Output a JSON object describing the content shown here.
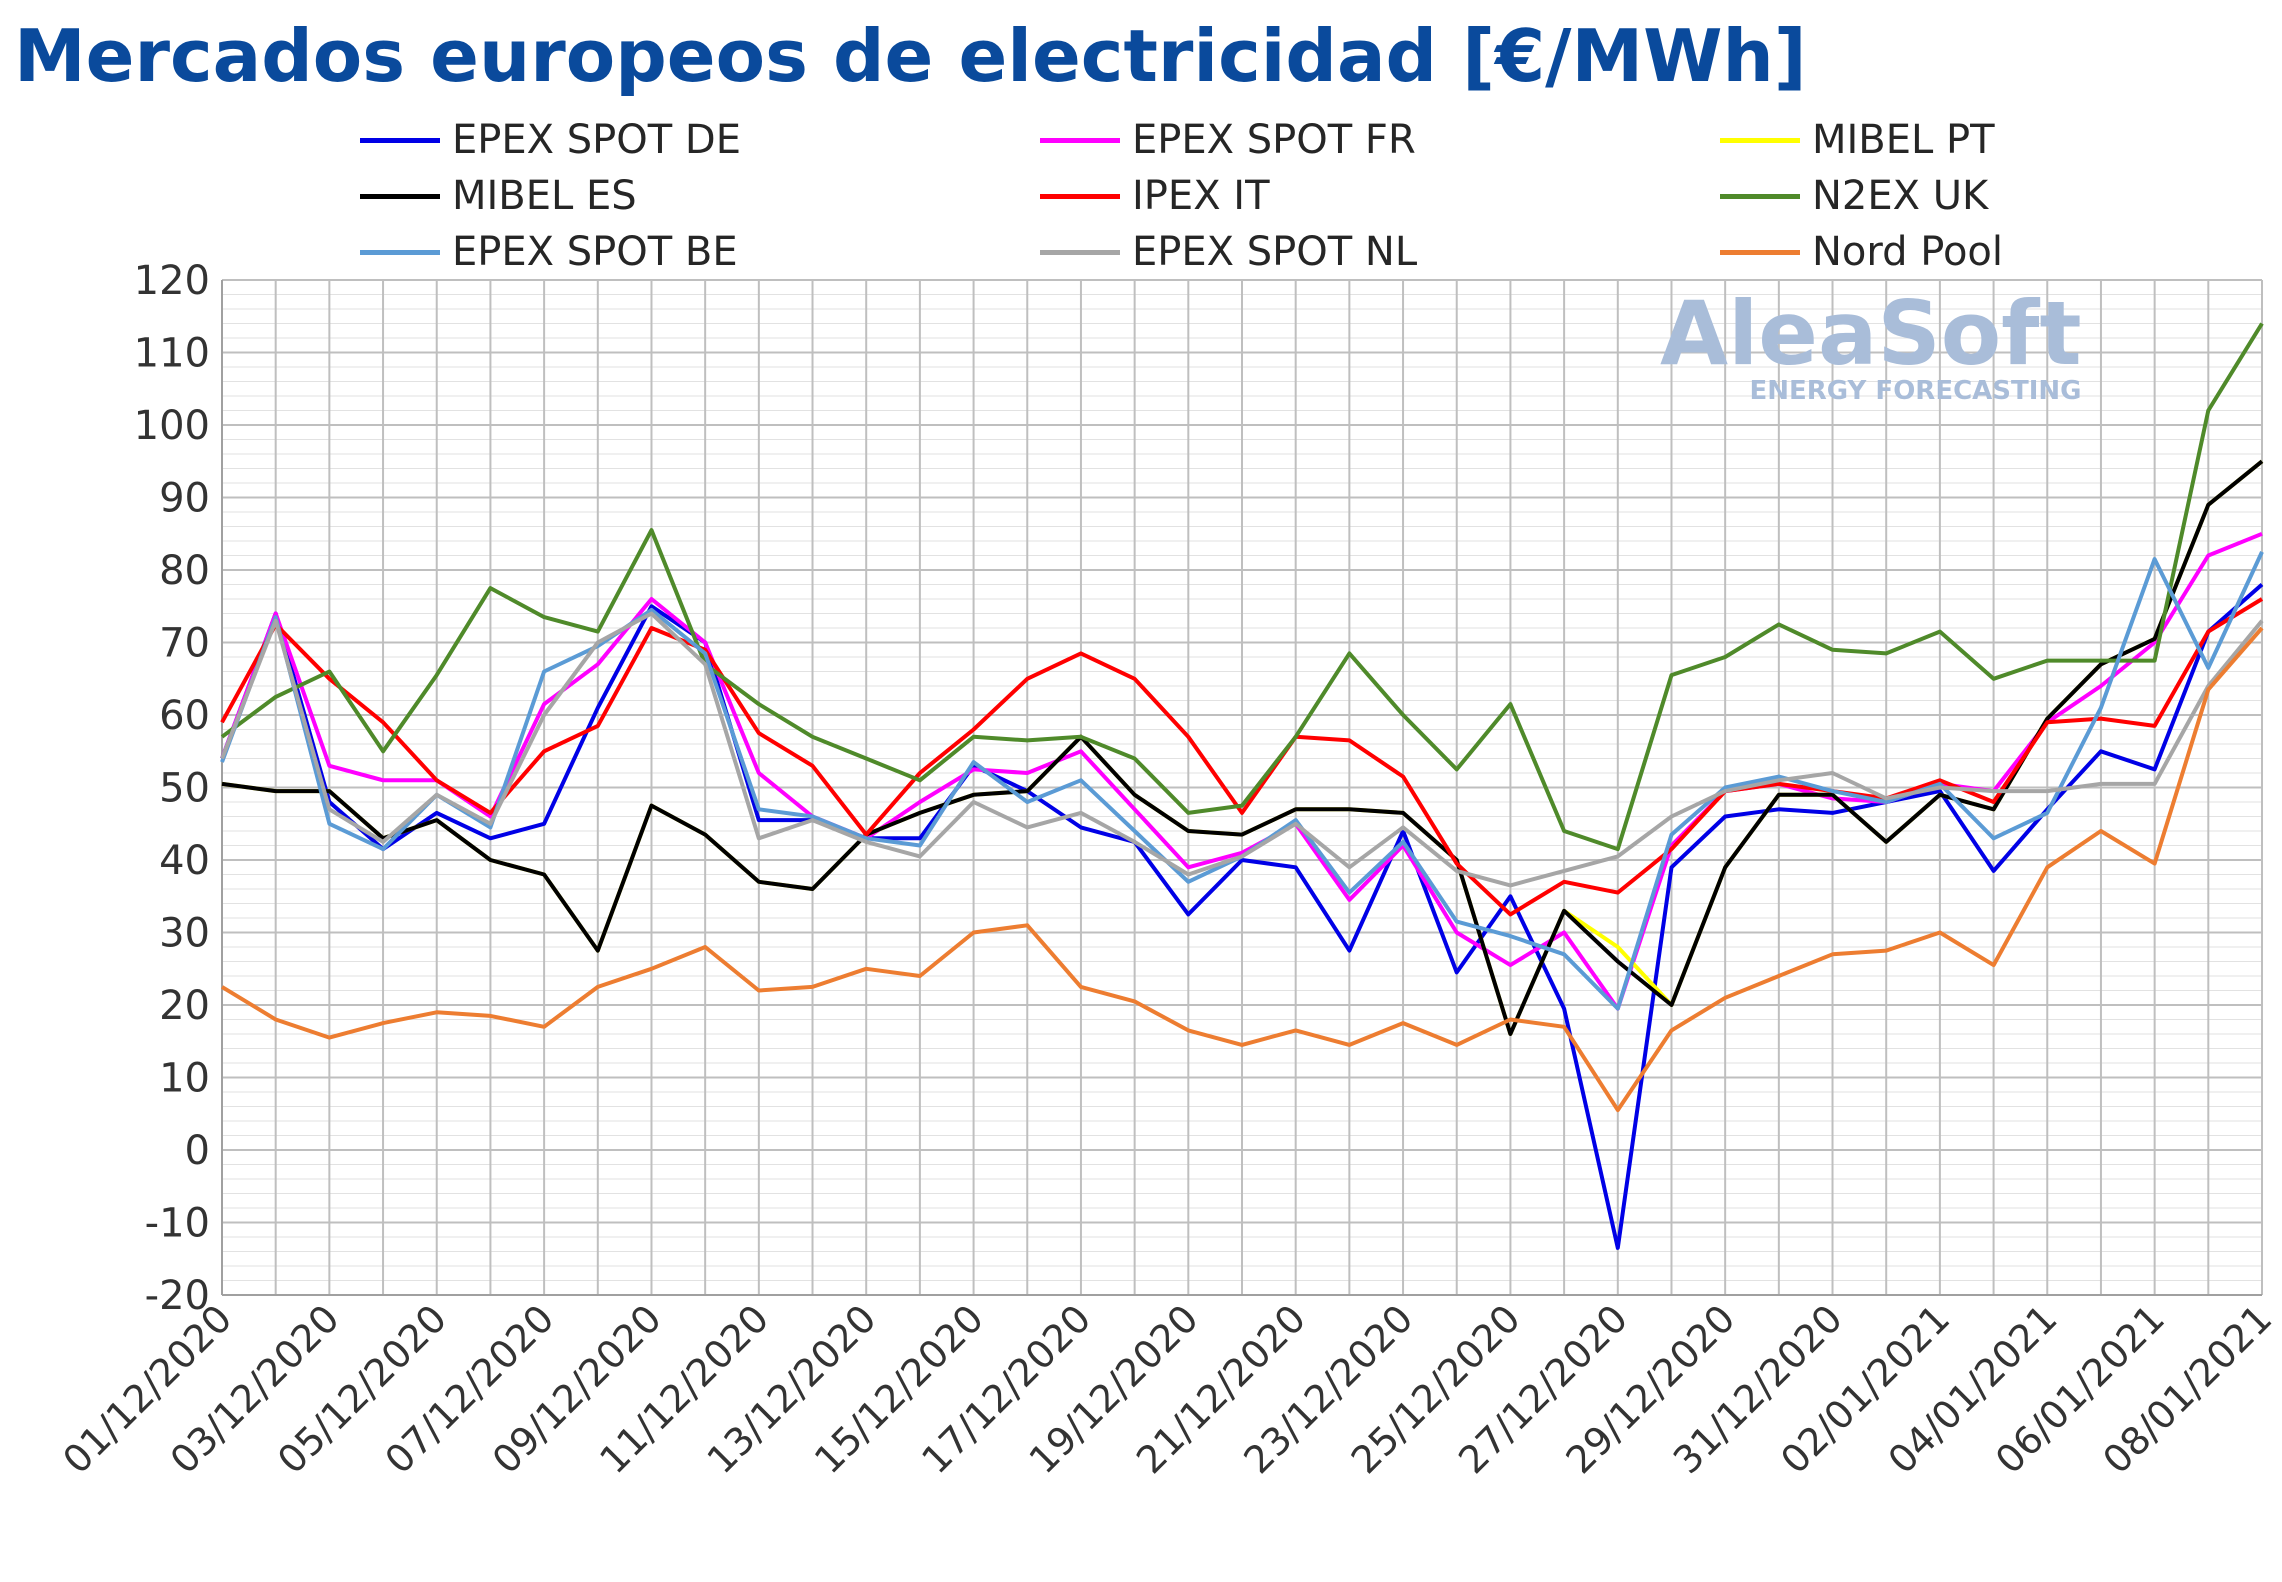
{
  "title": "Mercados europeos de electricidad [€/MWh]",
  "watermark": {
    "name": "AleaSoft",
    "tagline": "ENERGY FORECASTING"
  },
  "chart_data": {
    "type": "line",
    "title": "Mercados europeos de electricidad [€/MWh]",
    "ylabel": "",
    "xlabel": "",
    "ylim": [
      -20,
      120
    ],
    "yticks": [
      120,
      110,
      100,
      90,
      80,
      70,
      60,
      50,
      40,
      30,
      20,
      10,
      0,
      -10,
      -20
    ],
    "grid": true,
    "legend_position": "top",
    "x": [
      "01/12/2020",
      "02/12/2020",
      "03/12/2020",
      "04/12/2020",
      "05/12/2020",
      "06/12/2020",
      "07/12/2020",
      "08/12/2020",
      "09/12/2020",
      "10/12/2020",
      "11/12/2020",
      "12/12/2020",
      "13/12/2020",
      "14/12/2020",
      "15/12/2020",
      "16/12/2020",
      "17/12/2020",
      "18/12/2020",
      "19/12/2020",
      "20/12/2020",
      "21/12/2020",
      "22/12/2020",
      "23/12/2020",
      "24/12/2020",
      "25/12/2020",
      "26/12/2020",
      "27/12/2020",
      "28/12/2020",
      "29/12/2020",
      "30/12/2020",
      "31/12/2020",
      "01/01/2021",
      "02/01/2021",
      "03/01/2021",
      "04/01/2021",
      "05/01/2021",
      "06/01/2021",
      "07/01/2021",
      "08/01/2021"
    ],
    "x_tick_labels": [
      "01/12/2020",
      "03/12/2020",
      "05/12/2020",
      "07/12/2020",
      "09/12/2020",
      "11/12/2020",
      "13/12/2020",
      "15/12/2020",
      "17/12/2020",
      "19/12/2020",
      "21/12/2020",
      "23/12/2020",
      "25/12/2020",
      "27/12/2020",
      "29/12/2020",
      "31/12/2020",
      "02/01/2021",
      "04/01/2021",
      "06/01/2021",
      "08/01/2021"
    ],
    "series": [
      {
        "name": "EPEX SPOT DE",
        "color": "#0000e6",
        "values": [
          54,
          74,
          48,
          41.5,
          46.5,
          43,
          45,
          61,
          75,
          70,
          45.5,
          45.5,
          43,
          43,
          53,
          49.5,
          44.5,
          42.5,
          32.5,
          40,
          39,
          27.5,
          44,
          24.5,
          35,
          19.5,
          -13.5,
          39,
          46,
          47,
          46.5,
          48,
          49.5,
          38.5,
          47,
          55,
          52.5,
          71.5,
          78
        ]
      },
      {
        "name": "EPEX SPOT FR",
        "color": "#ff00ff",
        "values": [
          54,
          74,
          53,
          51,
          51,
          46,
          61.5,
          67,
          76,
          70,
          52,
          46,
          43,
          48,
          52.5,
          52,
          55,
          47,
          39,
          41,
          45,
          34.5,
          42,
          30,
          25.5,
          30,
          19.5,
          42,
          49.5,
          50.5,
          48.5,
          48,
          50.5,
          49.5,
          59,
          64,
          70,
          82,
          85
        ]
      },
      {
        "name": "MIBEL PT",
        "color": "#ffff00",
        "values": [
          50.5,
          49.5,
          49.5,
          43,
          45.5,
          40,
          38,
          27.5,
          47.5,
          43.5,
          37,
          36,
          43.5,
          46.5,
          49,
          49.5,
          57,
          49,
          44,
          43.5,
          47,
          47,
          46.5,
          40,
          16,
          33,
          28,
          20,
          39,
          49,
          49,
          42.5,
          49,
          47,
          59.5,
          67,
          70.5,
          89,
          95
        ]
      },
      {
        "name": "MIBEL ES",
        "color": "#000000",
        "values": [
          50.5,
          49.5,
          49.5,
          43,
          45.5,
          40,
          38,
          27.5,
          47.5,
          43.5,
          37,
          36,
          43.5,
          46.5,
          49,
          49.5,
          57,
          49,
          44,
          43.5,
          47,
          47,
          46.5,
          40,
          16,
          33,
          26,
          20,
          39,
          49,
          49,
          42.5,
          49,
          47,
          59.5,
          67,
          70.5,
          89,
          95
        ]
      },
      {
        "name": "IPEX IT",
        "color": "#ff0000",
        "values": [
          59,
          72.5,
          65,
          59,
          51,
          46.5,
          55,
          58.5,
          72,
          69,
          57.5,
          53,
          43.5,
          52,
          58,
          65,
          68.5,
          65,
          57,
          46.5,
          57,
          56.5,
          51.5,
          39.5,
          32.5,
          37,
          35.5,
          41.5,
          49.5,
          50.5,
          49.5,
          48.5,
          51,
          48,
          59,
          59.5,
          58.5,
          71.5,
          76
        ]
      },
      {
        "name": "N2EX UK",
        "color": "#4f8a2a",
        "values": [
          57,
          62.5,
          66,
          55,
          65.5,
          77.5,
          73.5,
          71.5,
          85.5,
          67,
          61.5,
          57,
          54,
          51,
          57,
          56.5,
          57,
          54,
          46.5,
          47.5,
          57,
          68.5,
          60,
          52.5,
          61.5,
          44,
          41.5,
          65.5,
          68,
          72.5,
          69,
          68.5,
          71.5,
          65,
          67.5,
          67.5,
          67.5,
          102,
          114
        ]
      },
      {
        "name": "EPEX SPOT BE",
        "color": "#5b9bd5",
        "values": [
          53.5,
          73.5,
          45,
          41.5,
          49,
          44.5,
          66,
          69.5,
          74.5,
          68.5,
          47,
          46,
          43,
          42,
          53.5,
          48,
          51,
          44,
          37,
          40.5,
          45.5,
          35.5,
          42.5,
          31.5,
          29.5,
          27,
          19.5,
          43.5,
          50,
          51.5,
          49.5,
          48,
          50.5,
          43,
          46.5,
          61,
          81.5,
          66.5,
          82.5
        ]
      },
      {
        "name": "EPEX SPOT NL",
        "color": "#a6a6a6",
        "values": [
          54,
          73,
          47,
          42.5,
          49,
          45,
          60,
          70,
          74,
          67,
          43,
          45.5,
          42.5,
          40.5,
          48,
          44.5,
          46.5,
          42.5,
          38,
          40.5,
          45,
          39,
          44.5,
          38.5,
          36.5,
          38.5,
          40.5,
          46,
          49.5,
          51,
          52,
          48.5,
          50,
          49.5,
          49.5,
          50.5,
          50.5,
          64,
          73
        ]
      },
      {
        "name": "Nord Pool",
        "color": "#ed7d31",
        "values": [
          22.5,
          18,
          15.5,
          17.5,
          19,
          18.5,
          17,
          22.5,
          25,
          28,
          22,
          22.5,
          25,
          24,
          30,
          31,
          22.5,
          20.5,
          16.5,
          14.5,
          16.5,
          14.5,
          17.5,
          14.5,
          18,
          17,
          5.5,
          16.5,
          21,
          24,
          27,
          27.5,
          30,
          25.5,
          39,
          44,
          39.5,
          63.5,
          72
        ]
      }
    ]
  }
}
